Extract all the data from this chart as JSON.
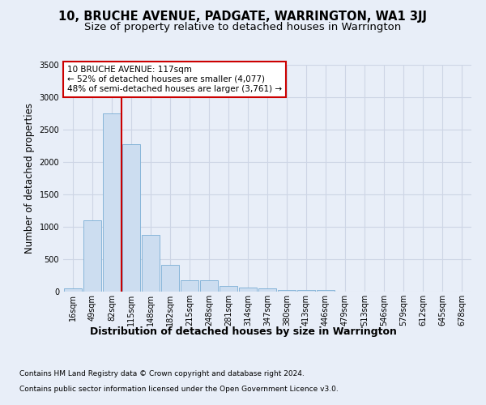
{
  "title": "10, BRUCHE AVENUE, PADGATE, WARRINGTON, WA1 3JJ",
  "subtitle": "Size of property relative to detached houses in Warrington",
  "xlabel": "Distribution of detached houses by size in Warrington",
  "ylabel": "Number of detached properties",
  "categories": [
    "16sqm",
    "49sqm",
    "82sqm",
    "115sqm",
    "148sqm",
    "182sqm",
    "215sqm",
    "248sqm",
    "281sqm",
    "314sqm",
    "347sqm",
    "380sqm",
    "413sqm",
    "446sqm",
    "479sqm",
    "513sqm",
    "546sqm",
    "579sqm",
    "612sqm",
    "645sqm",
    "678sqm"
  ],
  "values": [
    50,
    1100,
    2750,
    2280,
    870,
    415,
    175,
    170,
    90,
    60,
    45,
    30,
    25,
    20,
    5,
    0,
    0,
    0,
    0,
    0,
    0
  ],
  "bar_color": "#ccddf0",
  "bar_edge_color": "#7aaed4",
  "red_line_index": 3,
  "annotation_box_text": "10 BRUCHE AVENUE: 117sqm\n← 52% of detached houses are smaller (4,077)\n48% of semi-detached houses are larger (3,761) →",
  "annotation_box_color": "#ffffff",
  "annotation_box_edge_color": "#cc0000",
  "red_line_color": "#cc0000",
  "grid_color": "#cdd5e5",
  "background_color": "#e8eef8",
  "plot_background_color": "#e8eef8",
  "ylim": [
    0,
    3500
  ],
  "yticks": [
    0,
    500,
    1000,
    1500,
    2000,
    2500,
    3000,
    3500
  ],
  "footer_line1": "Contains HM Land Registry data © Crown copyright and database right 2024.",
  "footer_line2": "Contains public sector information licensed under the Open Government Licence v3.0.",
  "title_fontsize": 10.5,
  "subtitle_fontsize": 9.5,
  "xlabel_fontsize": 9,
  "ylabel_fontsize": 8.5,
  "tick_fontsize": 7,
  "footer_fontsize": 6.5,
  "annotation_fontsize": 7.5
}
